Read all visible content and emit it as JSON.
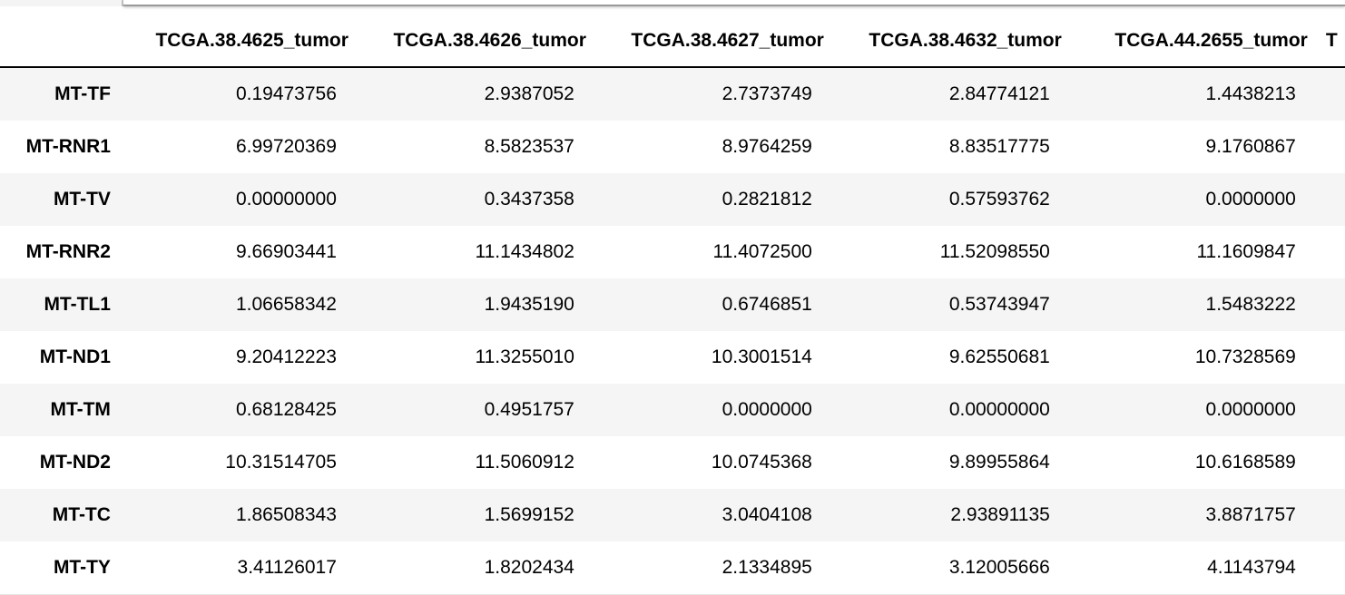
{
  "table": {
    "columns": [
      "",
      "TCGA.38.4625_tumor",
      "TCGA.38.4626_tumor",
      "TCGA.38.4627_tumor",
      "TCGA.38.4632_tumor",
      "TCGA.44.2655_tumor",
      "T"
    ],
    "rows": [
      {
        "label": "MT-TF",
        "values": [
          "0.19473756",
          "2.9387052",
          "2.7373749",
          "2.84774121",
          "1.4438213"
        ]
      },
      {
        "label": "MT-RNR1",
        "values": [
          "6.99720369",
          "8.5823537",
          "8.9764259",
          "8.83517775",
          "9.1760867"
        ]
      },
      {
        "label": "MT-TV",
        "values": [
          "0.00000000",
          "0.3437358",
          "0.2821812",
          "0.57593762",
          "0.0000000"
        ]
      },
      {
        "label": "MT-RNR2",
        "values": [
          "9.66903441",
          "11.1434802",
          "11.4072500",
          "11.52098550",
          "11.1609847"
        ]
      },
      {
        "label": "MT-TL1",
        "values": [
          "1.06658342",
          "1.9435190",
          "0.6746851",
          "0.53743947",
          "1.5483222"
        ]
      },
      {
        "label": "MT-ND1",
        "values": [
          "9.20412223",
          "11.3255010",
          "10.3001514",
          "9.62550681",
          "10.7328569"
        ]
      },
      {
        "label": "MT-TM",
        "values": [
          "0.68128425",
          "0.4951757",
          "0.0000000",
          "0.00000000",
          "0.0000000"
        ]
      },
      {
        "label": "MT-ND2",
        "values": [
          "10.31514705",
          "11.5060912",
          "10.0745368",
          "9.89955864",
          "10.6168589"
        ]
      },
      {
        "label": "MT-TC",
        "values": [
          "1.86508343",
          "1.5699152",
          "3.0404108",
          "2.93891135",
          "3.8871757"
        ]
      },
      {
        "label": "MT-TY",
        "values": [
          "3.41126017",
          "1.8202434",
          "2.1334895",
          "3.12005666",
          "4.1143794"
        ]
      }
    ]
  }
}
